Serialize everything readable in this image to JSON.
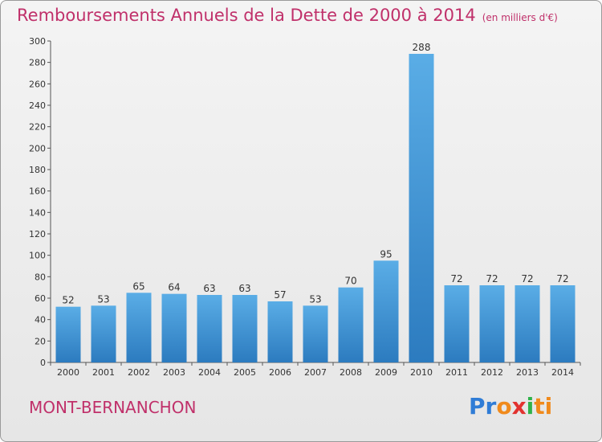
{
  "title": {
    "main": "Remboursements Annuels de la Dette de 2000 à 2014",
    "unit": "(en milliers d'€)"
  },
  "town": "MONT-BERNANCHON",
  "logo": {
    "part1": "Pr",
    "part2": "o",
    "part3": "x",
    "part4": "i",
    "part5": "ti"
  },
  "colors": {
    "bar_light": "#5aade6",
    "bar_dark": "#2c7bbf",
    "title": "#c0306a"
  },
  "chart_data": {
    "type": "bar",
    "title": "Remboursements Annuels de la Dette de 2000 à 2014",
    "subtitle": "(en milliers d'€)",
    "categories": [
      "2000",
      "2001",
      "2002",
      "2003",
      "2004",
      "2005",
      "2006",
      "2007",
      "2008",
      "2009",
      "2010",
      "2011",
      "2012",
      "2013",
      "2014"
    ],
    "values": [
      52,
      53,
      65,
      64,
      63,
      63,
      57,
      53,
      70,
      95,
      288,
      72,
      72,
      72,
      72
    ],
    "ylim": [
      0,
      300
    ],
    "yticks": [
      0,
      20,
      40,
      60,
      80,
      100,
      120,
      140,
      160,
      180,
      200,
      220,
      240,
      260,
      280,
      300
    ],
    "grid": false,
    "legend": "none"
  }
}
